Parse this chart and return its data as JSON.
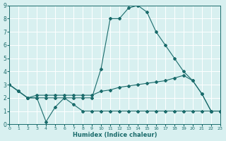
{
  "xlabel": "Humidex (Indice chaleur)",
  "x_values": [
    0,
    1,
    2,
    3,
    4,
    5,
    6,
    7,
    8,
    9,
    10,
    11,
    12,
    13,
    14,
    15,
    16,
    17,
    18,
    19,
    20,
    21,
    22,
    23
  ],
  "line1": [
    3.0,
    2.5,
    2.0,
    2.0,
    2.0,
    2.0,
    2.0,
    2.0,
    2.0,
    2.0,
    4.2,
    8.0,
    8.0,
    8.8,
    9.0,
    8.5,
    7.0,
    6.0,
    5.0,
    4.0,
    3.3,
    2.3,
    1.0,
    1.0
  ],
  "line2": [
    3.0,
    2.5,
    2.0,
    2.2,
    2.2,
    2.2,
    2.2,
    2.2,
    2.2,
    2.2,
    2.5,
    2.6,
    2.8,
    2.9,
    3.0,
    3.1,
    3.2,
    3.3,
    3.5,
    3.7,
    3.3,
    2.3,
    1.0,
    1.0
  ],
  "line3": [
    3.0,
    2.5,
    2.0,
    2.0,
    0.2,
    1.3,
    2.0,
    1.5,
    1.0,
    1.0,
    1.0,
    1.0,
    1.0,
    1.0,
    1.0,
    1.0,
    1.0,
    1.0,
    1.0,
    1.0,
    1.0,
    1.0,
    1.0,
    1.0
  ],
  "line_color": "#1a6b6b",
  "bg_color": "#d8f0f0",
  "grid_color": "#c8e0e0",
  "ylim": [
    0,
    9
  ],
  "xlim": [
    0,
    23
  ],
  "yticks": [
    0,
    1,
    2,
    3,
    4,
    5,
    6,
    7,
    8,
    9
  ]
}
